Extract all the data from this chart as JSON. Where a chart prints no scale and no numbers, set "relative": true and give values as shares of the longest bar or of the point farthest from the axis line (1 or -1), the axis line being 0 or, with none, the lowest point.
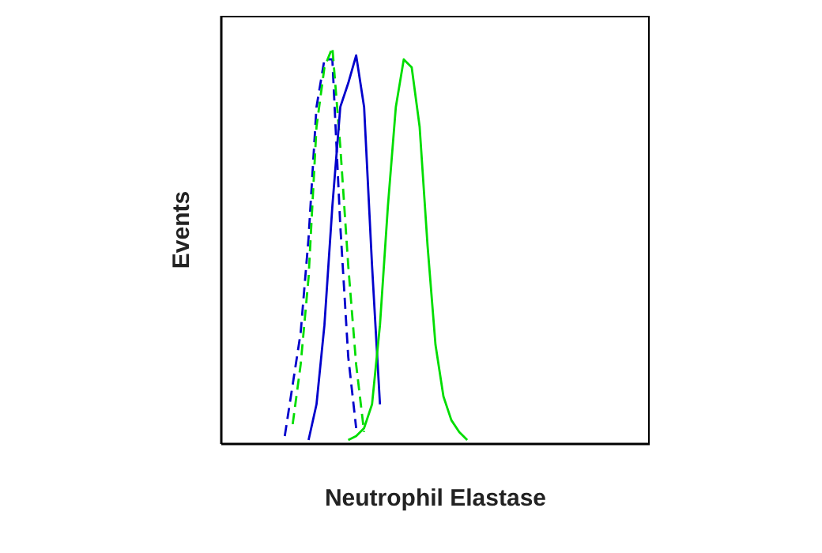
{
  "chart_data": {
    "type": "line",
    "relative": true,
    "xlabel": "Neutrophil Elastase",
    "ylabel": "Events",
    "tick_labels": false,
    "marker": "none",
    "categories": [
      null,
      null,
      null,
      null,
      null,
      null,
      null,
      null,
      null,
      null,
      null,
      null,
      null,
      null,
      null,
      null,
      null,
      null,
      null,
      null,
      null,
      null,
      null,
      null,
      null,
      null,
      null,
      null,
      null,
      null,
      null,
      null,
      null,
      null,
      null,
      null,
      null,
      null,
      null,
      null,
      null,
      null,
      null,
      null,
      null,
      null,
      null,
      null,
      null,
      null,
      null,
      null,
      null,
      null,
      null
    ],
    "series": [
      {
        "color": "#0000cc",
        "line_style": "dashed",
        "values": [
          null,
          null,
          null,
          null,
          null,
          null,
          null,
          null,
          0.02,
          0.15,
          0.28,
          0.52,
          0.85,
          0.97,
          0.97,
          0.55,
          0.22,
          0.04,
          null,
          null,
          null,
          null,
          null,
          null,
          null,
          null,
          null,
          null,
          null,
          null,
          null,
          null,
          null,
          null,
          null,
          null,
          null,
          null,
          null,
          null,
          null,
          null,
          null,
          null,
          null,
          null,
          null,
          null,
          null,
          null,
          null,
          null,
          null,
          null,
          null
        ]
      },
      {
        "color": "#00dd00",
        "line_style": "dashed",
        "values": [
          null,
          null,
          null,
          null,
          null,
          null,
          null,
          null,
          null,
          0.05,
          0.2,
          0.42,
          0.8,
          0.95,
          1.0,
          0.75,
          0.45,
          0.2,
          0.03,
          null,
          null,
          null,
          null,
          null,
          null,
          null,
          null,
          null,
          null,
          null,
          null,
          null,
          null,
          null,
          null,
          null,
          null,
          null,
          null,
          null,
          null,
          null,
          null,
          null,
          null,
          null,
          null,
          null,
          null,
          null,
          null,
          null,
          null,
          null,
          null
        ]
      },
      {
        "color": "#0000cc",
        "line_style": "solid",
        "values": [
          null,
          null,
          null,
          null,
          null,
          null,
          null,
          null,
          null,
          null,
          null,
          0.01,
          0.1,
          0.3,
          0.6,
          0.85,
          0.91,
          0.98,
          0.85,
          0.45,
          0.1,
          null,
          null,
          null,
          null,
          null,
          null,
          null,
          null,
          null,
          null,
          null,
          null,
          null,
          null,
          null,
          null,
          null,
          null,
          null,
          null,
          null,
          null,
          null,
          null,
          null,
          null,
          null,
          null,
          null,
          null,
          null,
          null,
          null,
          null
        ]
      },
      {
        "color": "#00dd00",
        "line_style": "solid",
        "values": [
          null,
          null,
          null,
          null,
          null,
          null,
          null,
          null,
          null,
          null,
          null,
          null,
          null,
          null,
          null,
          null,
          0.01,
          0.02,
          0.04,
          0.1,
          0.3,
          0.6,
          0.85,
          0.97,
          0.95,
          0.8,
          0.5,
          0.25,
          0.12,
          0.06,
          0.03,
          0.01,
          null,
          null,
          null,
          null,
          null,
          null,
          null,
          null,
          null,
          null,
          null,
          null,
          null,
          null,
          null,
          null,
          null,
          null,
          null,
          null,
          null,
          null,
          null
        ]
      }
    ]
  }
}
